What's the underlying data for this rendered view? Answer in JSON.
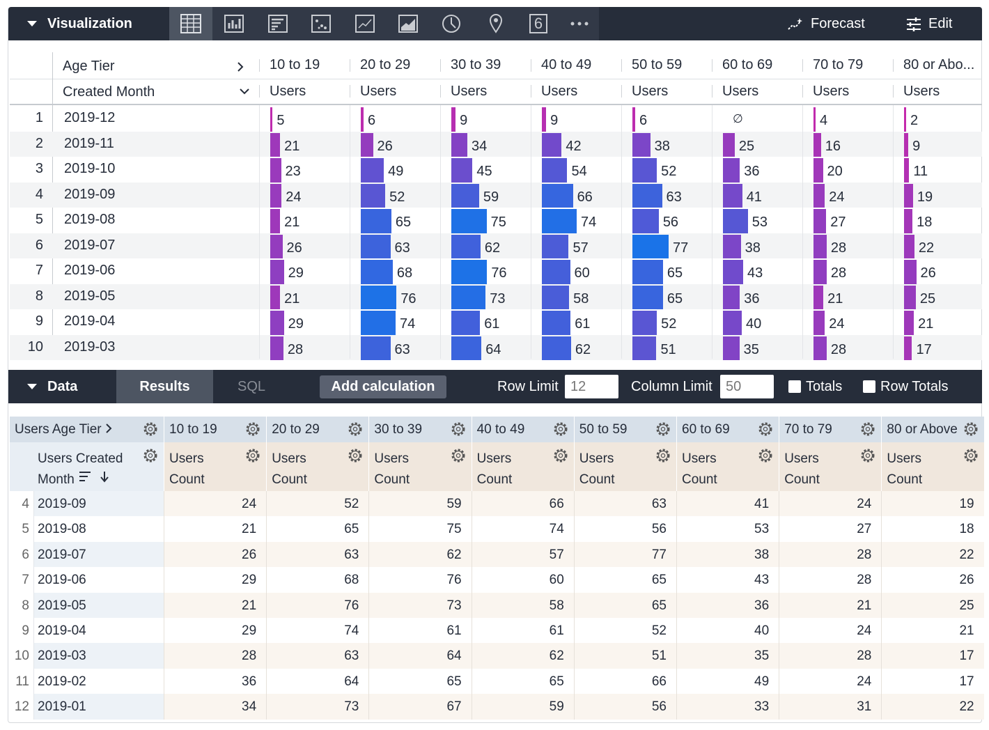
{
  "visualization": {
    "header": {
      "title": "Visualization",
      "single_value_icon": "6",
      "forecast": "Forecast",
      "edit": "Edit"
    },
    "table": {
      "pivot_label": "Age Tier",
      "dimension_label": "Created Month",
      "columns": [
        "10 to 19",
        "20 to 29",
        "30 to 39",
        "40 to 49",
        "50 to 59",
        "60 to 69",
        "70 to 79",
        "80 or Abo..."
      ],
      "measure_label": "Users",
      "null_symbol": "∅",
      "rows": [
        {
          "num": 1,
          "month": "2019-12",
          "values": [
            5,
            6,
            9,
            9,
            6,
            null,
            4,
            2
          ]
        },
        {
          "num": 2,
          "month": "2019-11",
          "values": [
            21,
            26,
            34,
            42,
            38,
            25,
            16,
            9
          ]
        },
        {
          "num": 3,
          "month": "2019-10",
          "values": [
            23,
            49,
            45,
            54,
            52,
            36,
            20,
            11
          ]
        },
        {
          "num": 4,
          "month": "2019-09",
          "values": [
            24,
            52,
            59,
            66,
            63,
            41,
            24,
            19
          ]
        },
        {
          "num": 5,
          "month": "2019-08",
          "values": [
            21,
            65,
            75,
            74,
            56,
            53,
            27,
            18
          ]
        },
        {
          "num": 6,
          "month": "2019-07",
          "values": [
            26,
            63,
            62,
            57,
            77,
            38,
            28,
            22
          ]
        },
        {
          "num": 7,
          "month": "2019-06",
          "values": [
            29,
            68,
            76,
            60,
            65,
            43,
            28,
            26
          ]
        },
        {
          "num": 8,
          "month": "2019-05",
          "values": [
            21,
            76,
            73,
            58,
            65,
            36,
            21,
            25
          ]
        },
        {
          "num": 9,
          "month": "2019-04",
          "values": [
            29,
            74,
            61,
            61,
            52,
            40,
            24,
            21
          ]
        },
        {
          "num": 10,
          "month": "2019-03",
          "values": [
            28,
            63,
            64,
            62,
            51,
            35,
            28,
            17
          ]
        }
      ]
    }
  },
  "data": {
    "header": {
      "title": "Data",
      "tabs": [
        "Results",
        "SQL"
      ],
      "add_calculation": "Add calculation",
      "row_limit_label": "Row Limit",
      "row_limit": 12,
      "column_limit_label": "Column Limit",
      "column_limit": 50,
      "totals": "Totals",
      "row_totals": "Row Totals"
    },
    "table": {
      "pivot_label": "Users Age Tier",
      "dimension_label": "Users Created Month",
      "columns": [
        "10 to 19",
        "20 to 29",
        "30 to 39",
        "40 to 49",
        "50 to 59",
        "60 to 69",
        "70 to 79",
        "80 or Above"
      ],
      "measure_label": "Users Count",
      "rows": [
        {
          "num": 4,
          "month": "2019-09",
          "values": [
            24,
            52,
            59,
            66,
            63,
            41,
            24,
            19
          ]
        },
        {
          "num": 5,
          "month": "2019-08",
          "values": [
            21,
            65,
            75,
            74,
            56,
            53,
            27,
            18
          ]
        },
        {
          "num": 6,
          "month": "2019-07",
          "values": [
            26,
            63,
            62,
            57,
            77,
            38,
            28,
            22
          ]
        },
        {
          "num": 7,
          "month": "2019-06",
          "values": [
            29,
            68,
            76,
            60,
            65,
            43,
            28,
            26
          ]
        },
        {
          "num": 8,
          "month": "2019-05",
          "values": [
            21,
            76,
            73,
            58,
            65,
            36,
            21,
            25
          ]
        },
        {
          "num": 9,
          "month": "2019-04",
          "values": [
            29,
            74,
            61,
            61,
            52,
            40,
            24,
            21
          ]
        },
        {
          "num": 10,
          "month": "2019-03",
          "values": [
            28,
            63,
            64,
            62,
            51,
            35,
            28,
            17
          ]
        },
        {
          "num": 11,
          "month": "2019-02",
          "values": [
            36,
            64,
            65,
            65,
            66,
            49,
            24,
            17
          ]
        },
        {
          "num": 12,
          "month": "2019-01",
          "values": [
            34,
            73,
            67,
            59,
            56,
            33,
            31,
            22
          ]
        }
      ]
    }
  }
}
